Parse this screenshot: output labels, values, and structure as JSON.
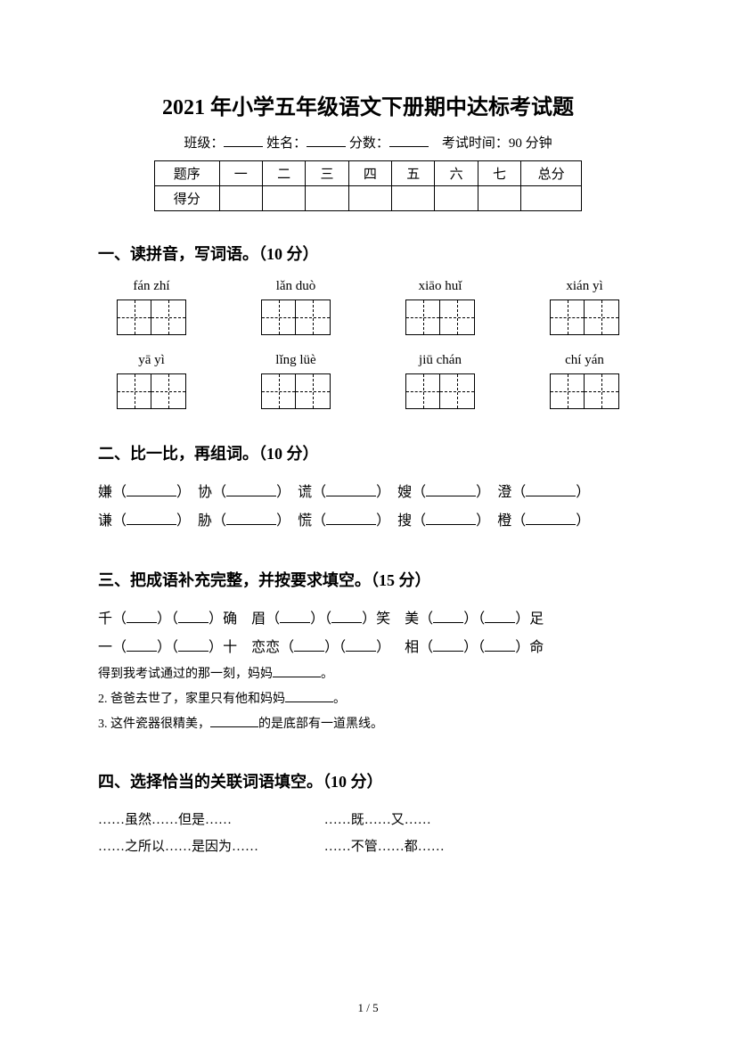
{
  "page": {
    "current": "1",
    "total": "5"
  },
  "title": "2021 年小学五年级语文下册期中达标考试题",
  "info": {
    "class_label": "班级：",
    "name_label": "姓名：",
    "score_label": "分数：",
    "time_label": "考试时间：90 分钟"
  },
  "scoreTable": {
    "header_label": "题序",
    "footer_label": "得分",
    "cols": [
      "一",
      "二",
      "三",
      "四",
      "五",
      "六",
      "七",
      "总分"
    ]
  },
  "section1": {
    "heading": "一、读拼音，写词语。（10 分）",
    "row1": [
      "fán zhí",
      "lǎn duò",
      "xiāo huǐ",
      "xián yì"
    ],
    "row2": [
      "yā   yì",
      "lǐng lüè",
      "jiū chán",
      "chí yán"
    ]
  },
  "section2": {
    "heading": "二、比一比，再组词。（10 分）",
    "row1": [
      "嫌",
      "协",
      "谎",
      "嫂",
      "澄"
    ],
    "row2": [
      "谦",
      "胁",
      "慌",
      "搜",
      "橙"
    ]
  },
  "section3": {
    "heading": "三、把成语补充完整，并按要求填空。（15 分）",
    "line1": {
      "a": "千",
      "b": "确",
      "c": "眉",
      "d": "笑",
      "e": "美",
      "f": "足"
    },
    "line2": {
      "a": "一",
      "b": "十",
      "c": "恋恋",
      "e": "相",
      "f": "命"
    },
    "s1_pre": "得到我考试通过的那一刻，妈妈",
    "s1_post": "。",
    "s2_pre": "2. 爸爸去世了，家里只有他和妈妈",
    "s2_post": "。",
    "s3_pre": "3. 这件瓷器很精美，",
    "s3_post": "的是底部有一道黑线。"
  },
  "section4": {
    "heading": "四、选择恰当的关联词语填空。（10 分）",
    "opts": {
      "a": "……虽然……但是……",
      "b": "……既……又……",
      "c": "……之所以……是因为……",
      "d": "……不管……都……"
    }
  },
  "style": {
    "bg": "#ffffff",
    "fg": "#000000",
    "title_fontsize": 24,
    "body_fontsize": 16
  }
}
